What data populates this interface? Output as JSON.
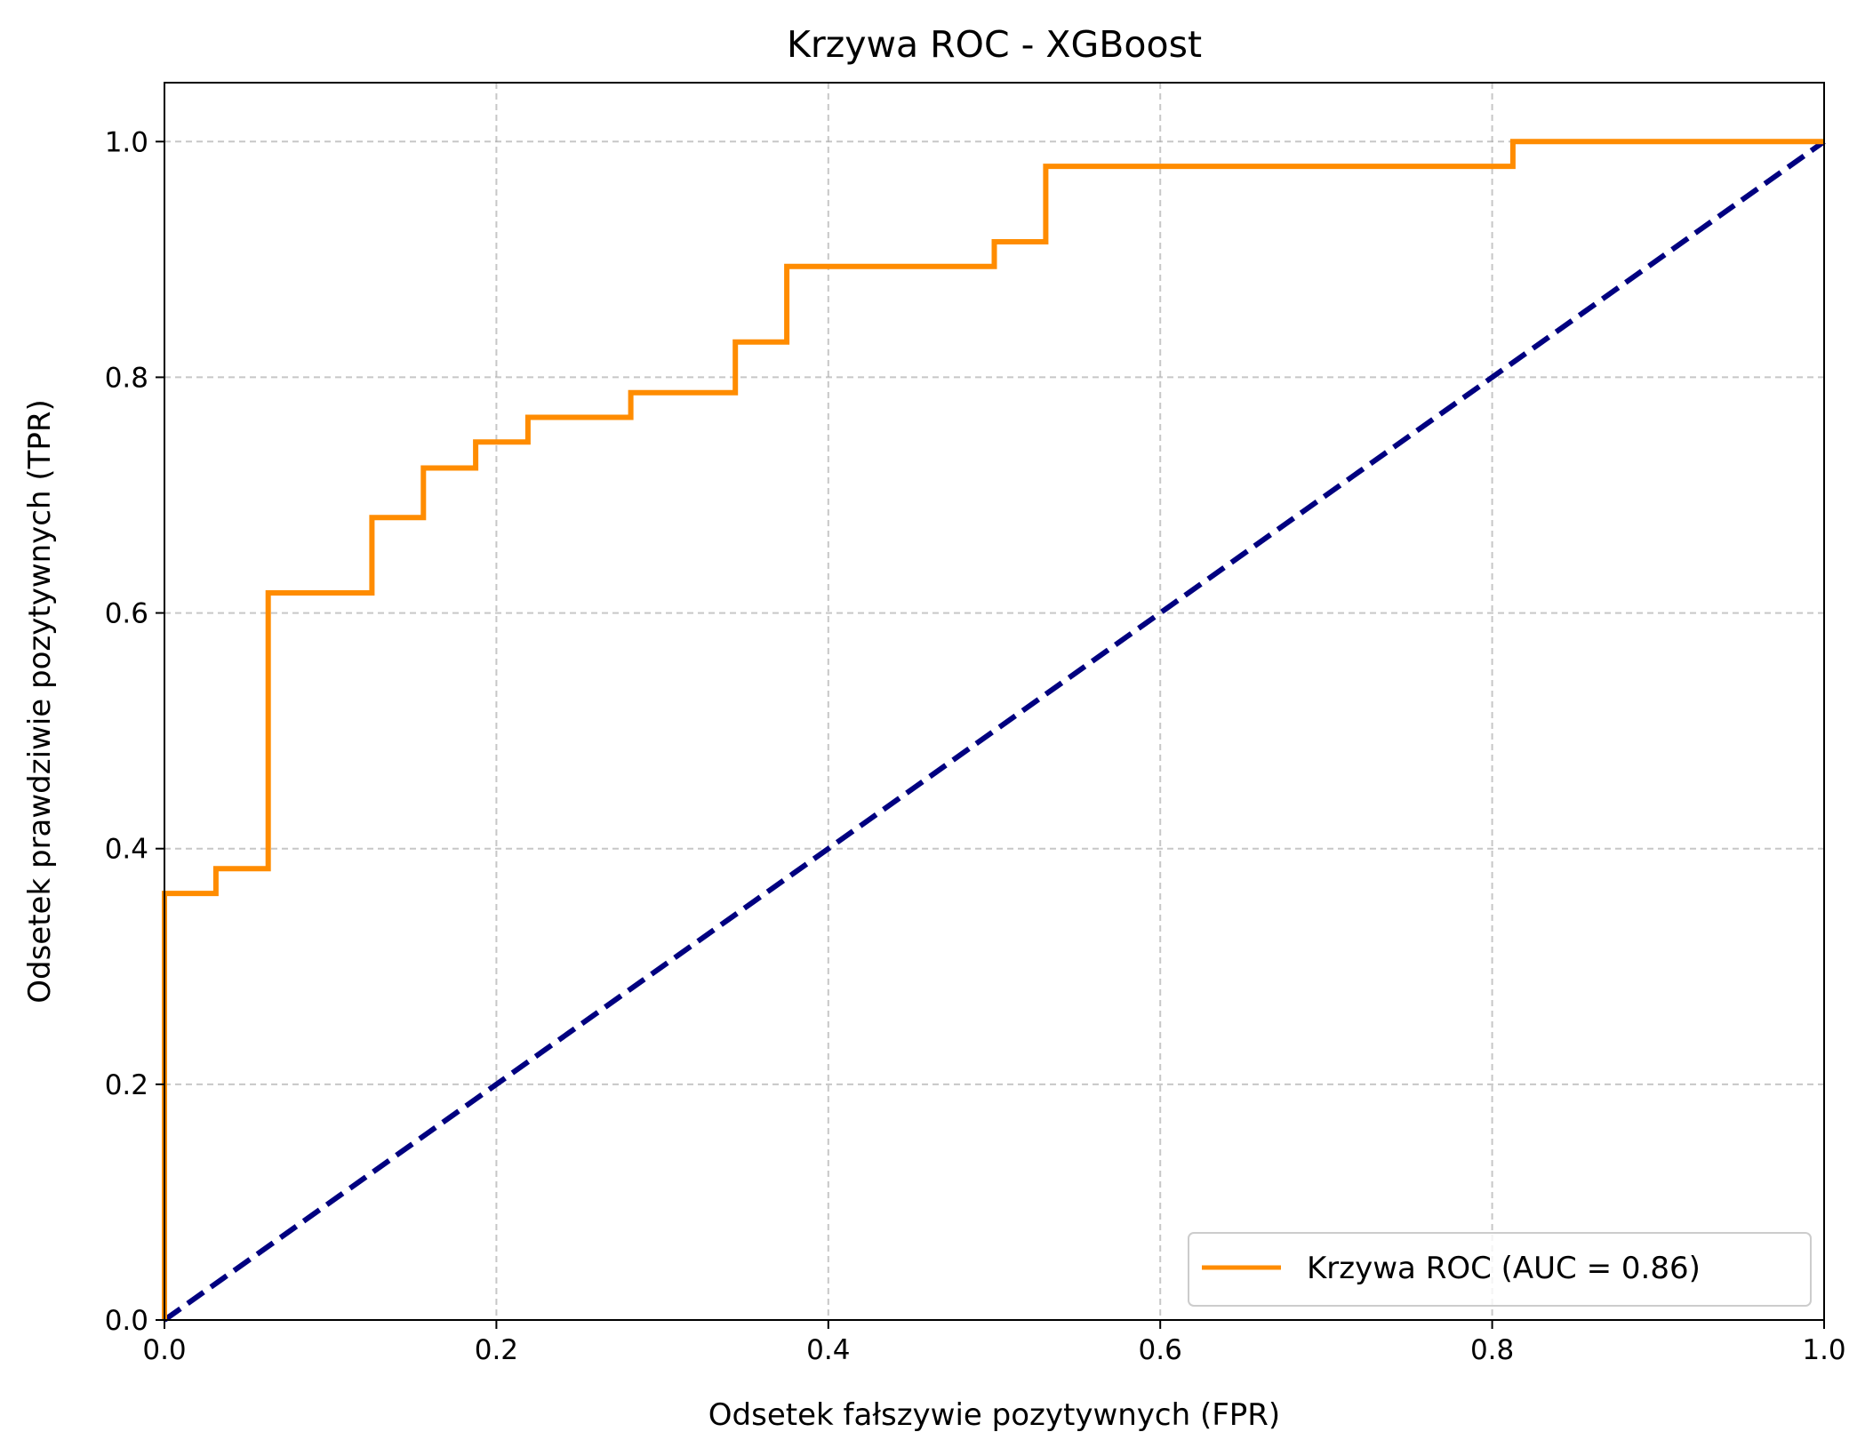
{
  "chart_data": {
    "type": "line",
    "title": "Krzywa ROC - XGBoost",
    "xlabel": "Odsetek fałszywie pozytywnych (FPR)",
    "ylabel": "Odsetek prawdziwie pozytywnych (TPR)",
    "xlim": [
      0.0,
      1.0
    ],
    "ylim": [
      0.0,
      1.05
    ],
    "xticks": [
      0.0,
      0.2,
      0.4,
      0.6,
      0.8,
      1.0
    ],
    "yticks": [
      0.0,
      0.2,
      0.4,
      0.6,
      0.8,
      1.0
    ],
    "xtick_labels": [
      "0.0",
      "0.2",
      "0.4",
      "0.6",
      "0.8",
      "1.0"
    ],
    "ytick_labels": [
      "0.0",
      "0.2",
      "0.4",
      "0.6",
      "0.8",
      "1.0"
    ],
    "grid": true,
    "legend_position": "lower-right",
    "series": [
      {
        "name": "Krzywa ROC (AUC = 0.86)",
        "color": "#ff8c00",
        "style": "solid",
        "step": true,
        "x": [
          0.0,
          0.0,
          0.031,
          0.031,
          0.0625,
          0.0625,
          0.125,
          0.125,
          0.156,
          0.156,
          0.1875,
          0.1875,
          0.219,
          0.219,
          0.281,
          0.281,
          0.344,
          0.344,
          0.375,
          0.375,
          0.5,
          0.5,
          0.531,
          0.531,
          0.8125,
          0.8125,
          1.0
        ],
        "y": [
          0.0,
          0.362,
          0.362,
          0.383,
          0.383,
          0.617,
          0.617,
          0.681,
          0.681,
          0.723,
          0.723,
          0.745,
          0.745,
          0.766,
          0.766,
          0.787,
          0.787,
          0.83,
          0.83,
          0.894,
          0.894,
          0.915,
          0.915,
          0.979,
          0.979,
          1.0,
          1.0
        ]
      },
      {
        "name": "",
        "color": "#000080",
        "style": "dashed",
        "step": false,
        "x": [
          0.0,
          1.0
        ],
        "y": [
          0.0,
          1.0
        ]
      }
    ]
  }
}
